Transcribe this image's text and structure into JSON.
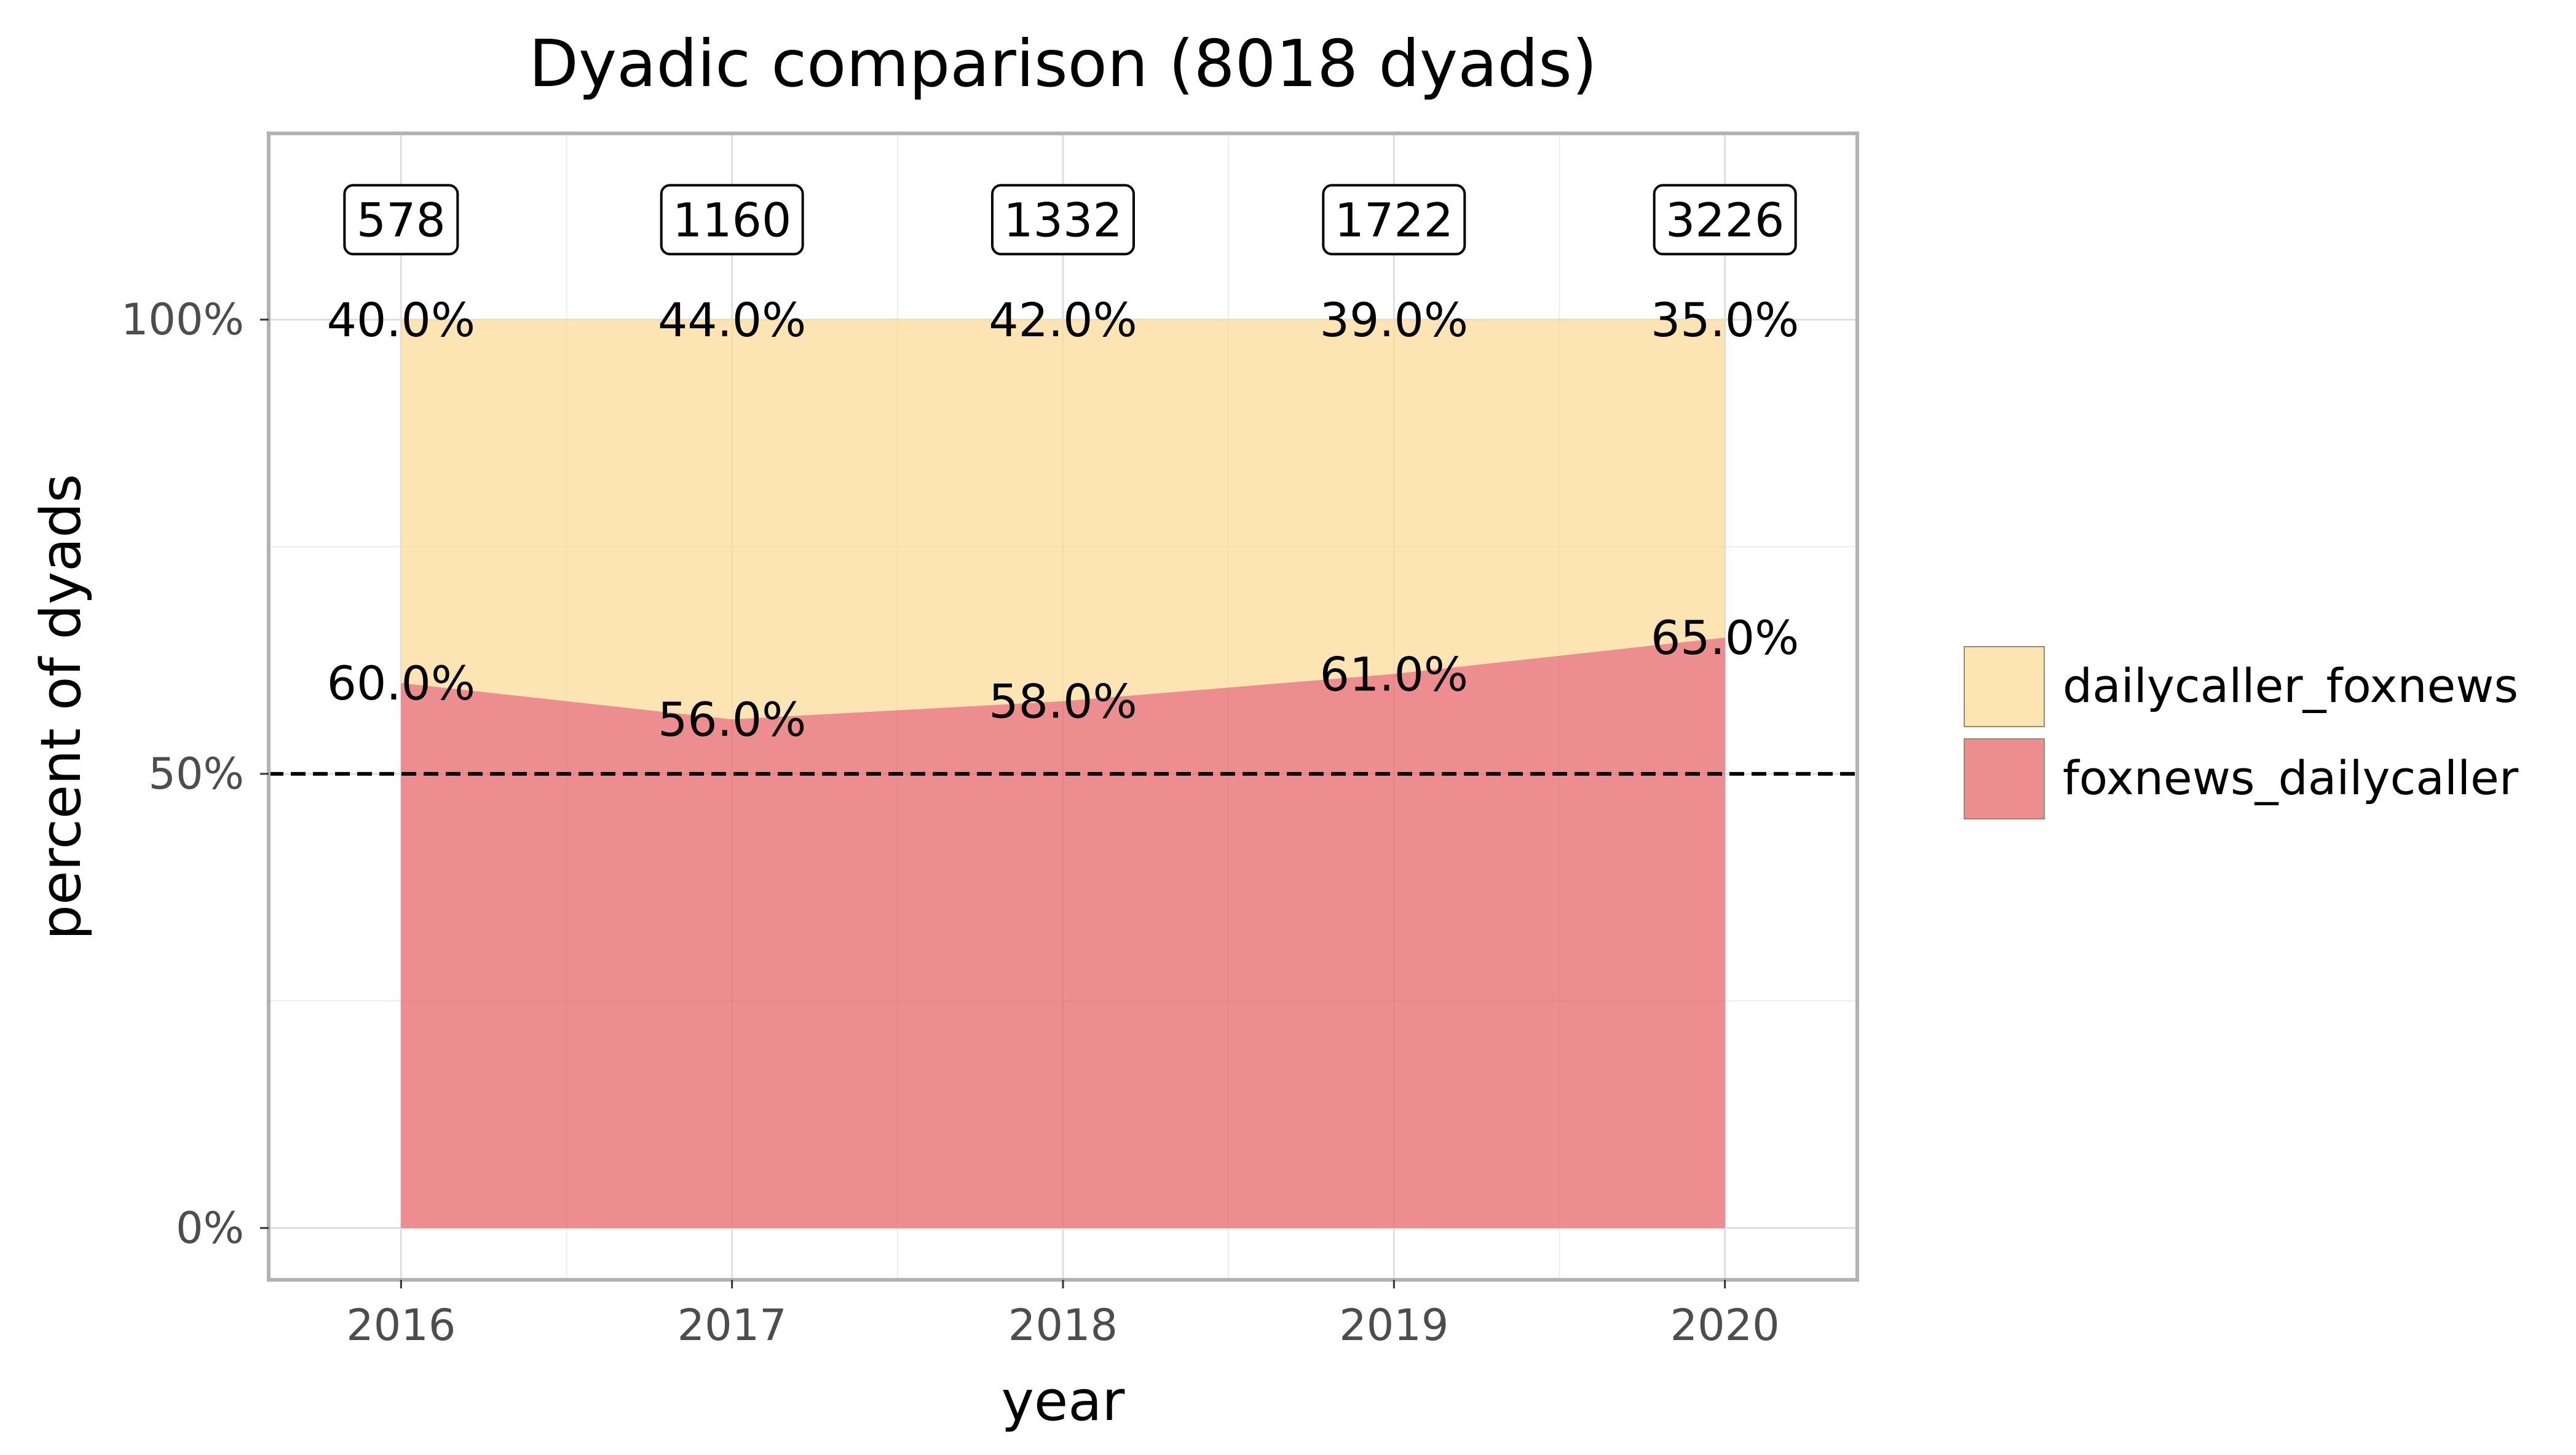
{
  "chart_data": {
    "type": "area",
    "title": "Dyadic comparison (8018 dyads)",
    "xlabel": "year",
    "ylabel": "percent of dyads",
    "x": [
      "2016",
      "2017",
      "2018",
      "2019",
      "2020"
    ],
    "xlim": [
      2015.6,
      2020.4
    ],
    "ylim": [
      -5.7,
      120.5
    ],
    "yticks": [
      {
        "value": 0,
        "label": "0%"
      },
      {
        "value": 50,
        "label": "50%"
      },
      {
        "value": 100,
        "label": "100%"
      }
    ],
    "stacked": true,
    "series": [
      {
        "name": "foxnews_dailycaller",
        "color": "#e8676b",
        "values": [
          60.0,
          56.0,
          58.0,
          61.0,
          65.0
        ],
        "labels": [
          "60.0%",
          "56.0%",
          "58.0%",
          "61.0%",
          "65.0%"
        ]
      },
      {
        "name": "dailycaller_foxnews",
        "color": "#fcdb9a",
        "values": [
          40.0,
          44.0,
          42.0,
          39.0,
          35.0
        ],
        "labels": [
          "40.0%",
          "44.0%",
          "42.0%",
          "39.0%",
          "35.0%"
        ]
      }
    ],
    "counts": [
      "578",
      "1160",
      "1332",
      "1722",
      "3226"
    ],
    "reference_line": {
      "value": 50,
      "style": "dashed"
    },
    "grid": true,
    "legend": {
      "position": "right",
      "entries": [
        "dailycaller_foxnews",
        "foxnews_dailycaller"
      ]
    }
  }
}
